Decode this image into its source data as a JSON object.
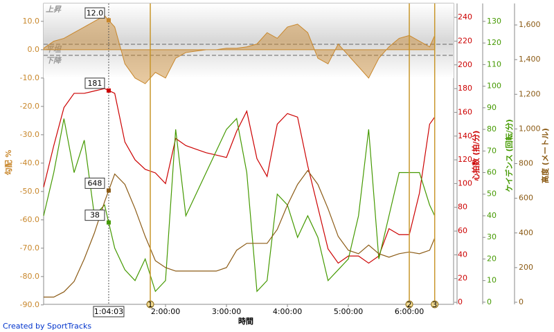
{
  "chart_data": {
    "type": "line",
    "x_label": "時間",
    "xlim": [
      0,
      403.6
    ],
    "xticks": [
      {
        "value": 120,
        "label": "2:00:00"
      },
      {
        "value": 180,
        "label": "3:00:00"
      },
      {
        "value": 240,
        "label": "4:00:00"
      },
      {
        "value": 300,
        "label": "5:00:00"
      },
      {
        "value": 360,
        "label": "6:00:00"
      }
    ],
    "x": [
      0,
      10,
      20,
      30,
      40,
      50,
      60,
      70,
      80,
      90,
      100,
      110,
      120,
      130,
      140,
      150,
      160,
      170,
      180,
      190,
      200,
      210,
      220,
      230,
      240,
      250,
      260,
      270,
      280,
      290,
      300,
      310,
      320,
      330,
      340,
      350,
      360,
      370,
      380,
      385
    ],
    "ylim": [
      -89.8,
      16.3
    ],
    "yticks": [
      {
        "value": 10,
        "label": "10.0"
      },
      {
        "value": 0,
        "label": "0.0"
      },
      {
        "value": -10,
        "label": "-10.0"
      },
      {
        "value": -20,
        "label": "-20.0"
      },
      {
        "value": -30,
        "label": "-30.0"
      },
      {
        "value": -40,
        "label": "-40.0"
      },
      {
        "value": -50,
        "label": "-50.0"
      },
      {
        "value": -60,
        "label": "-60.0"
      },
      {
        "value": -70,
        "label": "-70.0"
      },
      {
        "value": -80,
        "label": "-80.0"
      },
      {
        "value": -90,
        "label": "-90.0"
      }
    ],
    "y_label": "勾配 %",
    "y2lim": [
      -1.7,
      251.7
    ],
    "y2ticks": [
      0,
      20,
      40,
      60,
      80,
      100,
      120,
      140,
      160,
      180,
      200,
      220,
      240
    ],
    "y2_label": "心拍数 (拍/分)",
    "y3lim": [
      -1,
      138.3
    ],
    "y3ticks": [
      0,
      10,
      20,
      30,
      40,
      50,
      60,
      70,
      80,
      90,
      100,
      110,
      120,
      130
    ],
    "y3_label": "ケイデンス (回転/分)",
    "y4lim": [
      -12,
      1724
    ],
    "y4ticks": [
      0,
      200,
      400,
      600,
      800,
      {
        "value": 1000,
        "label": "1,000"
      },
      {
        "value": 1200,
        "label": "1,200"
      },
      {
        "value": 1400,
        "label": "1,400"
      },
      {
        "value": 1600,
        "label": "1,600"
      }
    ],
    "y4_label": "高度 (メートル)",
    "zone_labels": [
      "上昇",
      "平坦",
      "下降"
    ],
    "series": [
      {
        "name": "勾配",
        "axis": "y",
        "style": "area",
        "color": "#c8862a",
        "cursor_label": "12.0",
        "values": [
          0.5,
          3,
          4,
          6,
          8,
          10,
          12,
          8,
          -5,
          -10,
          -12,
          -8,
          -10,
          -3,
          -1,
          -0.5,
          0,
          0,
          0.5,
          0.5,
          1,
          2,
          6,
          4,
          8,
          9,
          6,
          -3,
          -5,
          2,
          -2,
          -6,
          -10,
          -3,
          1,
          4,
          5,
          3,
          1,
          5
        ]
      },
      {
        "name": "心拍数",
        "axis": "y2",
        "style": "line",
        "color": "#cc0000",
        "cursor_label": "181",
        "values": [
          97,
          132,
          164,
          176,
          176,
          178,
          180,
          176,
          135,
          120,
          112,
          109,
          100,
          138,
          132,
          129,
          126,
          124,
          122,
          144,
          161,
          121,
          106,
          150,
          159,
          156,
          115,
          80,
          45,
          33,
          39,
          39,
          33,
          39,
          62,
          57,
          57,
          92,
          150,
          156
        ]
      },
      {
        "name": "ケイデンス",
        "axis": "y3",
        "style": "line",
        "color": "#449900",
        "cursor_label": "38",
        "values": [
          40,
          60,
          85,
          60,
          75,
          40,
          45,
          25,
          15,
          10,
          20,
          5,
          10,
          80,
          40,
          50,
          60,
          70,
          80,
          85,
          60,
          5,
          10,
          50,
          45,
          30,
          40,
          30,
          10,
          15,
          20,
          40,
          80,
          20,
          40,
          60,
          60,
          60,
          45,
          40
        ]
      },
      {
        "name": "高度",
        "axis": "y4",
        "style": "line",
        "color": "#8b5a14",
        "cursor_label": "648",
        "values": [
          30,
          30,
          60,
          120,
          250,
          400,
          580,
          740,
          680,
          540,
          380,
          240,
          200,
          180,
          180,
          180,
          180,
          180,
          200,
          300,
          340,
          340,
          340,
          420,
          560,
          680,
          760,
          680,
          540,
          380,
          300,
          280,
          330,
          280,
          260,
          280,
          290,
          280,
          300,
          370
        ]
      }
    ],
    "cursor": {
      "value": 64.05,
      "label": "1:04:03"
    },
    "laps": [
      {
        "value": 105,
        "label": "1"
      },
      {
        "value": 360,
        "label": "2"
      },
      {
        "value": 385,
        "label": "3"
      }
    ],
    "credit": "Created by SportTracks"
  }
}
